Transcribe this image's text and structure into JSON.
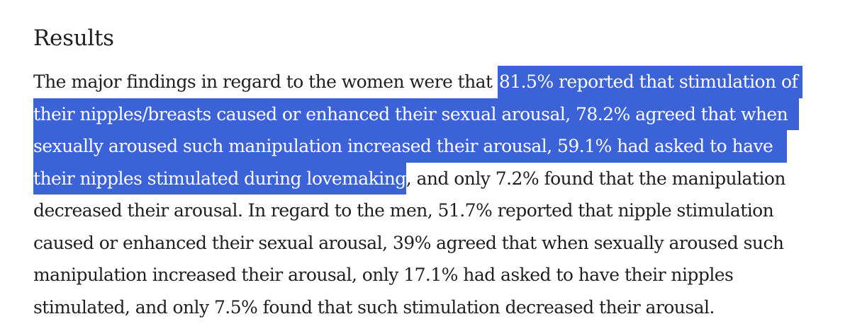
{
  "section": {
    "heading": "Results"
  },
  "paragraph": {
    "line1_plain": "The major findings in regard to the women were that ",
    "line1_selected": "81.5% reported that stimulation of",
    "line2_selected": "their nipples/breasts caused or enhanced their sexual arousal, 78.2% agreed that when",
    "line3_selected": "sexually aroused such manipulation increased their arousal, 59.1% had asked to have",
    "line4_selected": "their nipples stimulated during lovemaking",
    "line4_plain": ", and only 7.2% found that the manipulation",
    "line5": "decreased their arousal. In regard to the men, 51.7% reported that nipple stimulation",
    "line6": "caused or enhanced their sexual arousal, 39% agreed that when sexually aroused such",
    "line7": "manipulation increased their arousal, only 17.1% had asked to have their nipples",
    "line8": "stimulated, and only 7.5% found that such stimulation decreased their arousal."
  },
  "colors": {
    "text": "#1f1f1f",
    "selection_background": "#3b62d6",
    "selection_text": "#ffffff",
    "page_background": "#ffffff"
  }
}
